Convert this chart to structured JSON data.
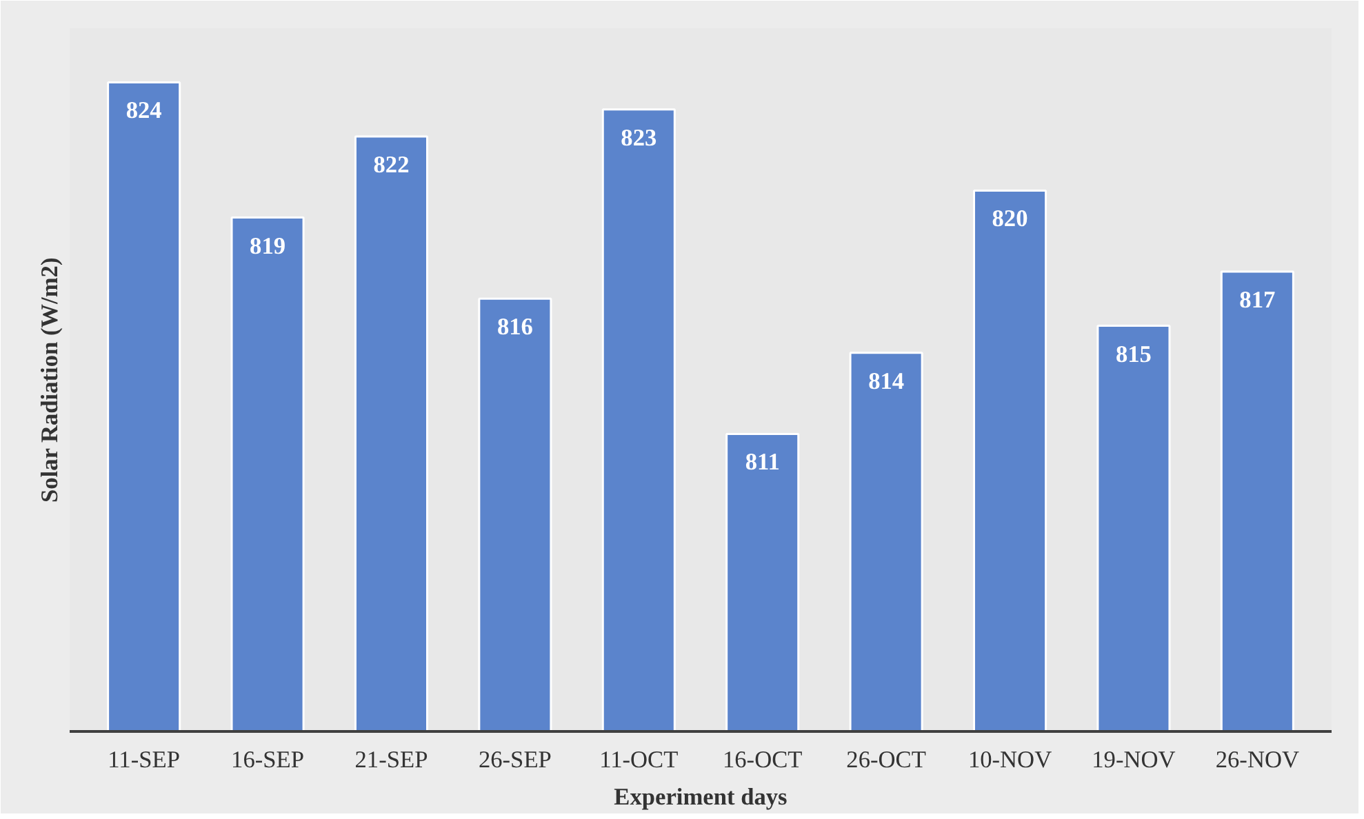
{
  "chart_data": {
    "type": "bar",
    "xlabel": "Experiment days",
    "ylabel": "Solar Radiation (W/m2)",
    "categories": [
      "11-SEP",
      "16-SEP",
      "21-SEP",
      "26-SEP",
      "11-OCT",
      "16-OCT",
      "26-OCT",
      "10-NOV",
      "19-NOV",
      "26-NOV"
    ],
    "values": [
      824,
      819,
      822,
      816,
      823,
      811,
      814,
      820,
      815,
      817
    ],
    "color": "#5b84cc",
    "ylim": [
      800,
      826
    ],
    "data_labels": true
  }
}
